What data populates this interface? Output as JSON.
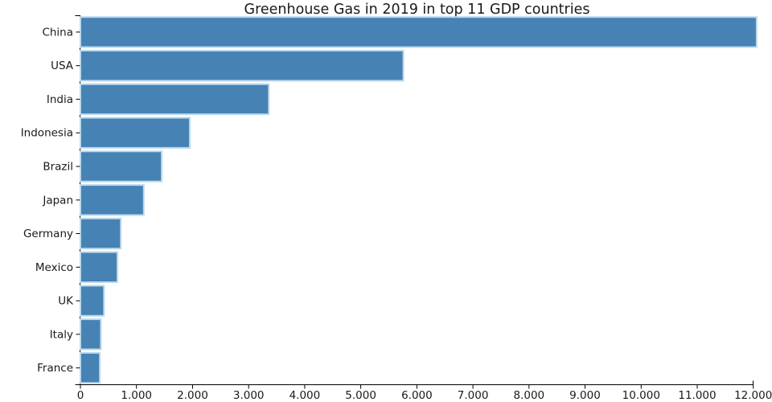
{
  "chart_data": {
    "type": "bar",
    "orientation": "horizontal",
    "title": "Greenhouse Gas in 2019 in top 11 GDP countries",
    "xlabel": "",
    "ylabel": "",
    "categories": [
      "China",
      "USA",
      "India",
      "Indonesia",
      "Brazil",
      "Japan",
      "Germany",
      "Mexico",
      "UK",
      "Italy",
      "France"
    ],
    "values": [
      12060,
      5760,
      3360,
      1950,
      1450,
      1130,
      720,
      660,
      420,
      365,
      345
    ],
    "xlim": [
      0,
      12000
    ],
    "x_ticks": [
      {
        "value": 0,
        "label": "0"
      },
      {
        "value": 1000,
        "label": "1.000"
      },
      {
        "value": 2000,
        "label": "2.000"
      },
      {
        "value": 3000,
        "label": "3.000"
      },
      {
        "value": 4000,
        "label": "4.000"
      },
      {
        "value": 5000,
        "label": "5.000"
      },
      {
        "value": 6000,
        "label": "6.000"
      },
      {
        "value": 7000,
        "label": "7.000"
      },
      {
        "value": 8000,
        "label": "8.000"
      },
      {
        "value": 9000,
        "label": "9.000"
      },
      {
        "value": 10000,
        "label": "10.000"
      },
      {
        "value": 11000,
        "label": "11.000"
      },
      {
        "value": 12000,
        "label": "12.000"
      }
    ],
    "grid": false,
    "legend": "none"
  },
  "colors": {
    "bar_fill": "#4682b4",
    "bar_edge": "#bcd8ec",
    "axis": "#000000",
    "text": "#1a1a1a",
    "background": "#ffffff"
  }
}
